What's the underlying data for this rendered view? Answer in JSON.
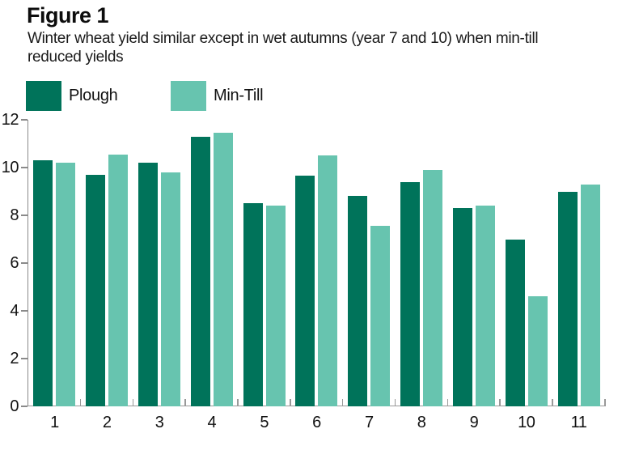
{
  "chart_data": {
    "type": "bar",
    "title": "Figure 1",
    "subtitle": "Winter wheat yield similar except in wet autumns (year 7 and 10) when min-till reduced yields",
    "categories": [
      "1",
      "2",
      "3",
      "4",
      "5",
      "6",
      "7",
      "8",
      "9",
      "10",
      "11"
    ],
    "series": [
      {
        "name": "Plough",
        "color": "#00735A",
        "values": [
          10.3,
          9.7,
          10.2,
          11.3,
          8.5,
          9.65,
          8.8,
          9.4,
          8.3,
          7.0,
          9.0
        ]
      },
      {
        "name": "Min-Till",
        "color": "#67C4AF",
        "values": [
          10.2,
          10.55,
          9.8,
          11.45,
          8.4,
          10.5,
          7.55,
          9.9,
          8.4,
          4.6,
          9.3
        ]
      }
    ],
    "xlabel": "",
    "ylabel": "",
    "ylim": [
      0,
      12
    ],
    "yticks": [
      0,
      2,
      4,
      6,
      8,
      10,
      12
    ],
    "grid": false,
    "legend_position": "top-left"
  },
  "colors": {
    "plough": "#00735A",
    "min_till": "#67C4AF",
    "axis": "#8a8a8a",
    "tick": "#999999",
    "text": "#1a1a1a"
  }
}
